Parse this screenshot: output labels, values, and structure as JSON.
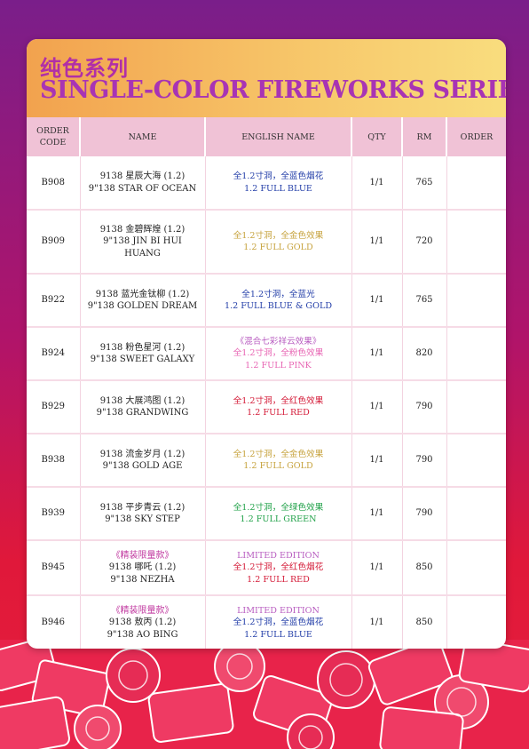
{
  "header": {
    "title_cn": "纯色系列",
    "title_en": "SINGLE-COLOR FIREWORKS SERIES"
  },
  "columns": [
    "ORDER CODE",
    "NAME",
    "ENGLISH NAME",
    "QTY",
    "RM",
    "ORDER"
  ],
  "rows": [
    {
      "code": "B908",
      "name_lines": [
        "9138 星辰大海 (1.2)",
        "9\"138 STAR OF OCEAN"
      ],
      "english_lines": [
        {
          "text": "全1.2寸洞，全蓝色烟花",
          "color": "#233ea8"
        },
        {
          "text": "1.2 FULL BLUE",
          "color": "#233ea8"
        }
      ],
      "qty": "1/1",
      "rm": "765",
      "order": ""
    },
    {
      "code": "B909",
      "name_lines": [
        "9138 金碧辉煌 (1.2)",
        "9\"138 JIN BI HUI",
        "HUANG"
      ],
      "english_lines": [
        {
          "text": "全1.2寸洞，全金色效果",
          "color": "#c7a33e"
        },
        {
          "text": "1.2 FULL GOLD",
          "color": "#c7a33e"
        }
      ],
      "qty": "1/1",
      "rm": "720",
      "order": ""
    },
    {
      "code": "B922",
      "name_lines": [
        "9138 蓝光金钛柳 (1.2)",
        "9\"138 GOLDEN DREAM"
      ],
      "english_lines": [
        {
          "text": "全1.2寸洞，全蓝光",
          "color": "#233ea8"
        },
        {
          "text": "1.2 FULL BLUE & GOLD",
          "color": "#233ea8"
        }
      ],
      "qty": "1/1",
      "rm": "765",
      "order": ""
    },
    {
      "code": "B924",
      "name_lines": [
        "9138 粉色星河 (1.2)",
        "9\"138 SWEET GALAXY"
      ],
      "english_lines": [
        {
          "text": "《混合七彩祥云效果》",
          "color": "#b85cc0"
        },
        {
          "text": "全1.2寸洞，全粉色效果",
          "color": "#e866b4"
        },
        {
          "text": "1.2 FULL PINK",
          "color": "#e866b4"
        }
      ],
      "qty": "1/1",
      "rm": "820",
      "order": ""
    },
    {
      "code": "B929",
      "name_lines": [
        "9138 大展鸿图 (1.2)",
        "9\"138 GRANDWING"
      ],
      "english_lines": [
        {
          "text": "全1.2寸洞，全红色效果",
          "color": "#d41b38"
        },
        {
          "text": "1.2 FULL RED",
          "color": "#d41b38"
        }
      ],
      "qty": "1/1",
      "rm": "790",
      "order": ""
    },
    {
      "code": "B938",
      "name_lines": [
        "9138 流金岁月 (1.2)",
        "9\"138 GOLD AGE"
      ],
      "english_lines": [
        {
          "text": "全1.2寸洞，全金色效果",
          "color": "#c7a33e"
        },
        {
          "text": "1.2 FULL GOLD",
          "color": "#c7a33e"
        }
      ],
      "qty": "1/1",
      "rm": "790",
      "order": ""
    },
    {
      "code": "B939",
      "name_lines": [
        "9138 平步青云 (1.2)",
        "9\"138 SKY STEP"
      ],
      "english_lines": [
        {
          "text": "全1.2寸洞，全绿色效果",
          "color": "#22a24a"
        },
        {
          "text": "1.2 FULL GREEN",
          "color": "#22a24a"
        }
      ],
      "qty": "1/1",
      "rm": "790",
      "order": ""
    },
    {
      "code": "B945",
      "name_lines": [
        {
          "text": "《精装限量款》",
          "color": "#c13aa0"
        },
        {
          "text": "9138 哪吒 (1.2)",
          "color": "#222222"
        },
        {
          "text": "9\"138 NEZHA",
          "color": "#222222"
        }
      ],
      "english_lines": [
        {
          "text": "LIMITED EDITION",
          "color": "#b85cc0"
        },
        {
          "text": "全1.2寸洞，全红色烟花",
          "color": "#d41b38"
        },
        {
          "text": "1.2 FULL RED",
          "color": "#d41b38"
        }
      ],
      "qty": "1/1",
      "rm": "850",
      "order": ""
    },
    {
      "code": "B946",
      "name_lines": [
        {
          "text": "《精装限量款》",
          "color": "#c13aa0"
        },
        {
          "text": "9138 敖丙 (1.2)",
          "color": "#222222"
        },
        {
          "text": "9\"138 AO BING",
          "color": "#222222"
        }
      ],
      "english_lines": [
        {
          "text": "LIMITED EDITION",
          "color": "#b85cc0"
        },
        {
          "text": "全1.2寸洞，全蓝色烟花",
          "color": "#233ea8"
        },
        {
          "text": "1.2 FULL BLUE",
          "color": "#233ea8"
        }
      ],
      "qty": "1/1",
      "rm": "850",
      "order": ""
    }
  ]
}
